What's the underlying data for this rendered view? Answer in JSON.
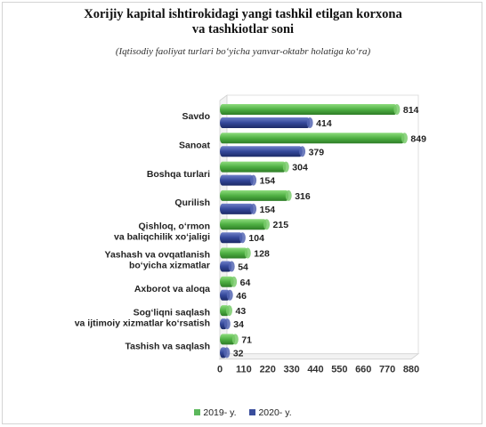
{
  "title": "Xorijiy kapital ishtirokidagi yangi tashkil etilgan korxona\nva tashkiotlar soni",
  "subtitle": "(Iqtisodiy faoliyat turlari bo‘yicha yanvar-oktabr holatiga ko‘ra)",
  "colors": {
    "series_2019": "#5cb85c",
    "series_2020": "#3a4e9c"
  },
  "chart_data": {
    "type": "bar",
    "orientation": "horizontal",
    "title": "Xorijiy kapital ishtirokidagi yangi tashkil etilgan korxona va tashkiotlar soni",
    "subtitle": "(Iqtisodiy faoliyat turlari bo‘yicha yanvar-oktabr holatiga ko‘ra)",
    "categories": [
      "Savdo",
      "Sanoat",
      "Boshqa turlari",
      "Qurilish",
      "Qishloq, o‘rmon\nva baliqchilik xo‘jaligi",
      "Yashash va ovqatlanish\nbo‘yicha xizmatlar",
      "Axborot va aloqa",
      "Sog‘liqni saqlash\nva ijtimoiy xizmatlar ko‘rsatish",
      "Tashish va saqlash"
    ],
    "series": [
      {
        "name": "2019- y.",
        "values": [
          814,
          849,
          304,
          316,
          215,
          128,
          64,
          43,
          71
        ]
      },
      {
        "name": "2020- y.",
        "values": [
          414,
          379,
          154,
          154,
          104,
          54,
          46,
          34,
          32
        ]
      }
    ],
    "xlim": [
      0,
      880
    ],
    "xticks": [
      0,
      110,
      220,
      330,
      440,
      550,
      660,
      770,
      880
    ],
    "grid": false,
    "legend_position": "bottom"
  }
}
